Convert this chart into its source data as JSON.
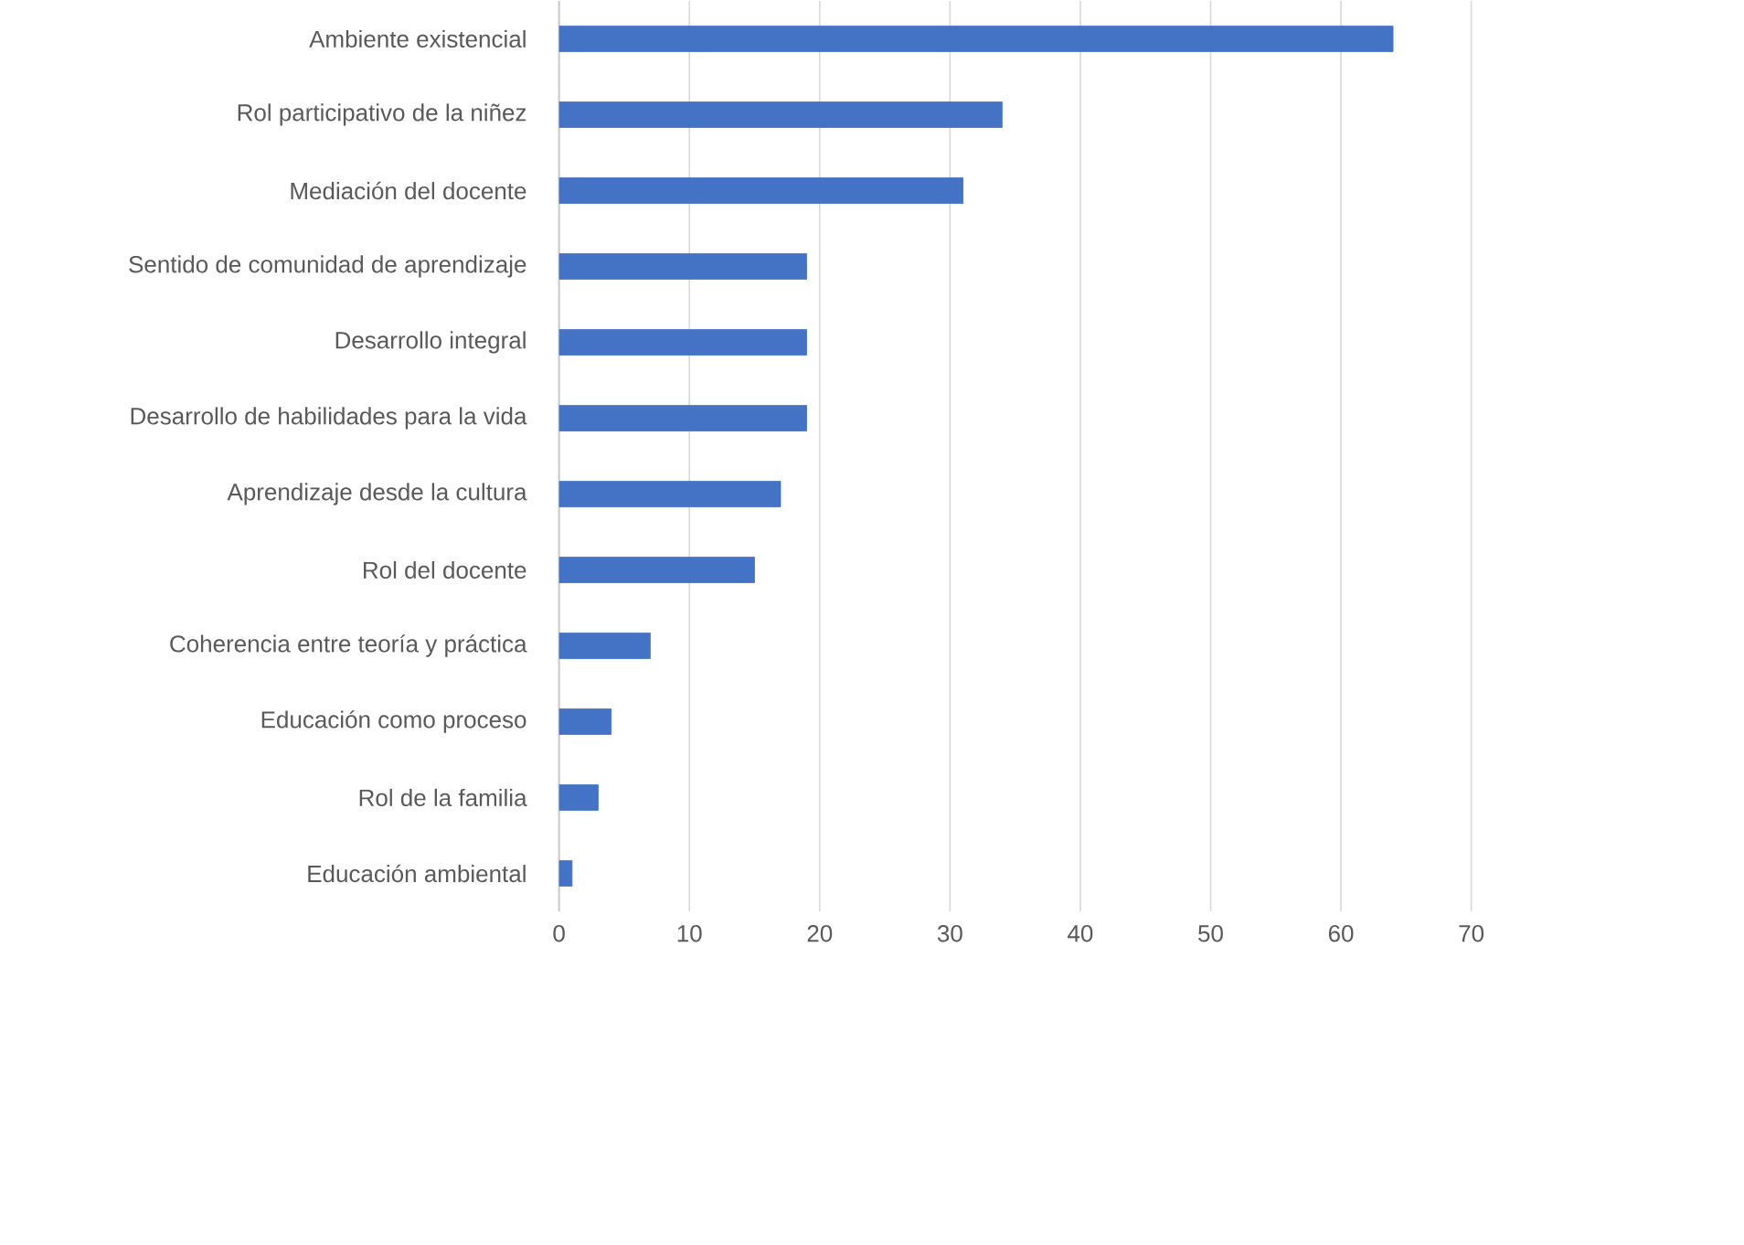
{
  "chart_data": {
    "type": "bar",
    "orientation": "horizontal",
    "categories": [
      "Ambiente existencial",
      "Rol participativo de la niñez",
      "Mediación del docente",
      "Sentido de comunidad de aprendizaje",
      "Desarrollo integral",
      "Desarrollo de habilidades para la vida",
      "Aprendizaje desde la cultura",
      "Rol del docente",
      "Coherencia entre teoría y práctica",
      "Educación como proceso",
      "Rol de la familia",
      "Educación ambiental"
    ],
    "values": [
      64,
      34,
      31,
      19,
      19,
      19,
      17,
      15,
      7,
      4,
      3,
      1
    ],
    "color": "#4472c4",
    "xlim": [
      0,
      70
    ],
    "xticks": [
      0,
      10,
      20,
      30,
      40,
      50,
      60,
      70
    ],
    "grid": "x"
  }
}
